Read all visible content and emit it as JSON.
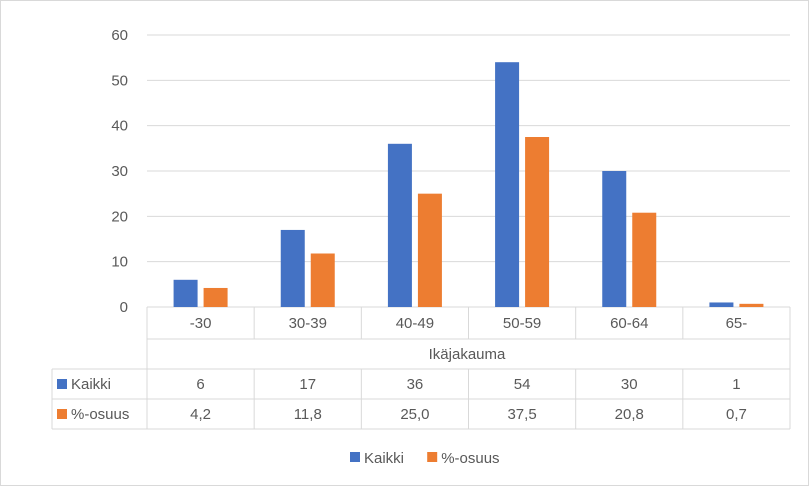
{
  "chart_data": {
    "type": "bar",
    "title": "",
    "xlabel": "Ikäjakauma",
    "ylabel": "",
    "ylim": [
      0,
      60
    ],
    "yticks": [
      0,
      10,
      20,
      30,
      40,
      50,
      60
    ],
    "grid": true,
    "legend_position": "bottom",
    "categories": [
      "-30",
      "30-39",
      "40-49",
      "50-59",
      "60-64",
      "65-"
    ],
    "series": [
      {
        "name": "Kaikki",
        "color": "#4472c4",
        "values": [
          6,
          17,
          36,
          54,
          30,
          1
        ],
        "table_labels": [
          "6",
          "17",
          "36",
          "54",
          "30",
          "1"
        ]
      },
      {
        "name": "%-osuus",
        "color": "#ed7d31",
        "values": [
          4.2,
          11.8,
          25.0,
          37.5,
          20.8,
          0.7
        ],
        "table_labels": [
          "4,2",
          "11,8",
          "25,0",
          "37,5",
          "20,8",
          "0,7"
        ]
      }
    ]
  }
}
